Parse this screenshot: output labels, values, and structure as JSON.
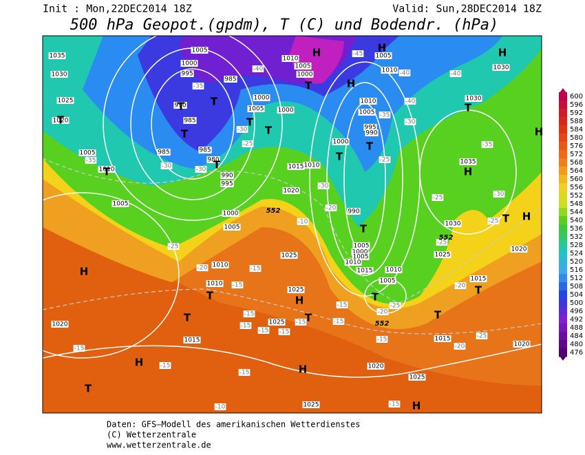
{
  "header": {
    "init": "Init : Mon,22DEC2014 18Z",
    "valid": "Valid: Sun,28DEC2014 18Z",
    "title": "500 hPa Geopot.(gpdm), T (C) und Bodendr. (hPa)"
  },
  "colorbar": {
    "ticks": [
      600,
      596,
      592,
      588,
      584,
      580,
      576,
      572,
      568,
      564,
      560,
      556,
      552,
      548,
      544,
      540,
      536,
      532,
      528,
      524,
      520,
      516,
      512,
      508,
      504,
      500,
      496,
      492,
      488,
      484,
      480,
      476
    ]
  },
  "map": {
    "pressure_labels": [
      "1035",
      "1030",
      "1025",
      "1020",
      "1005",
      "1010",
      "1005",
      "1005",
      "1000",
      "995",
      "985",
      "990",
      "985",
      "985",
      "985",
      "980",
      "990",
      "995",
      "1000",
      "1005",
      "1010",
      "1010",
      "1000",
      "1005",
      "1000",
      "1010",
      "1005",
      "1000",
      "1010",
      "1015",
      "1020",
      "1025",
      "1025",
      "1025",
      "1015",
      "1020",
      "1010",
      "1005",
      "995",
      "990",
      "1000",
      "990",
      "1005",
      "1000",
      "1005",
      "1010",
      "1015",
      "1010",
      "1005",
      "1030",
      "1025",
      "1035",
      "1030",
      "1030",
      "1015",
      "1020",
      "1020",
      "1015",
      "1020",
      "1025",
      "1025",
      "1010",
      "1005"
    ],
    "temperature_labels": [
      "-40",
      "-35",
      "-30",
      "-25",
      "-30",
      "-30",
      "-35",
      "-20",
      "-25",
      "-20",
      "-15",
      "-15",
      "-10",
      "-30",
      "-25",
      "-35",
      "-30",
      "-40",
      "-45",
      "-40",
      "-40",
      "-35",
      "-30",
      "-25",
      "-25",
      "-25",
      "-20",
      "-15",
      "-15",
      "-20",
      "-25",
      "-15",
      "-15",
      "-15",
      "-15",
      "-15",
      "-15",
      "-15",
      "-15",
      "-15",
      "-20",
      "-25",
      "-15",
      "-10"
    ],
    "centers": [
      "H",
      "H",
      "H",
      "H",
      "T",
      "T",
      "T",
      "T",
      "T",
      "T",
      "T",
      "T",
      "T",
      "T",
      "T",
      "T",
      "H",
      "T",
      "H",
      "H",
      "T",
      "T",
      "H",
      "T",
      "T",
      "T",
      "T",
      "H",
      "T",
      "H",
      "H",
      "T",
      "H"
    ],
    "height_labels": [
      "552",
      "552",
      "552"
    ]
  },
  "footer": {
    "source": "Daten: GFS–Modell des amerikanischen Wetterdienstes",
    "copyright": "(C) Wetterzentrale",
    "url": "www.wetterzentrale.de"
  }
}
